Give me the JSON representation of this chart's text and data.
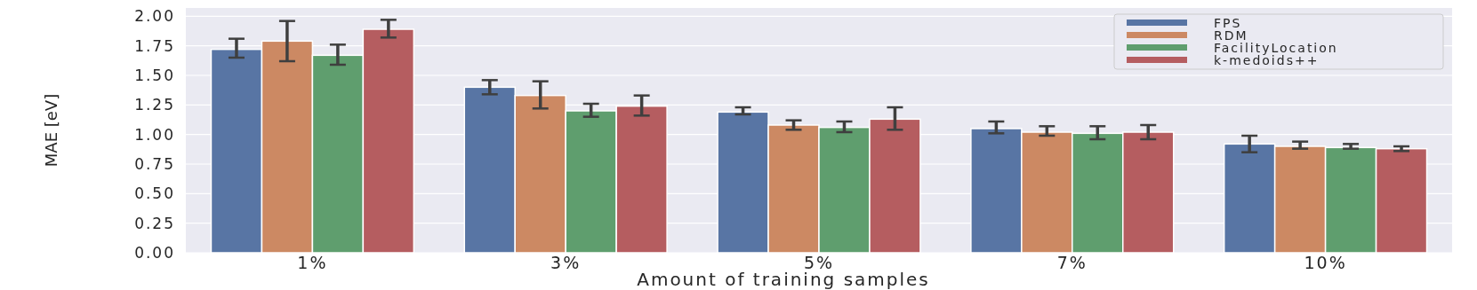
{
  "chart_data": {
    "type": "bar",
    "xlabel": "Amount of training samples",
    "ylabel": "MAE [eV]",
    "categories": [
      "1%",
      "3%",
      "5%",
      "7%",
      "10%"
    ],
    "series": [
      {
        "name": "FPS",
        "color": "#5875a4",
        "values": [
          1.72,
          1.4,
          1.19,
          1.05,
          0.92
        ],
        "errors": [
          [
            1.65,
            1.81
          ],
          [
            1.34,
            1.46
          ],
          [
            1.17,
            1.23
          ],
          [
            1.01,
            1.11
          ],
          [
            0.85,
            0.99
          ]
        ]
      },
      {
        "name": "RDM",
        "color": "#cc8963",
        "values": [
          1.79,
          1.33,
          1.08,
          1.02,
          0.9
        ],
        "errors": [
          [
            1.62,
            1.96
          ],
          [
            1.22,
            1.45
          ],
          [
            1.04,
            1.12
          ],
          [
            0.99,
            1.07
          ],
          [
            0.88,
            0.94
          ]
        ]
      },
      {
        "name": "FacilityLocation",
        "color": "#5f9e6e",
        "values": [
          1.67,
          1.2,
          1.06,
          1.01,
          0.89
        ],
        "errors": [
          [
            1.59,
            1.76
          ],
          [
            1.15,
            1.26
          ],
          [
            1.02,
            1.11
          ],
          [
            0.96,
            1.07
          ],
          [
            0.88,
            0.92
          ]
        ]
      },
      {
        "name": "k-medoids++",
        "color": "#b55d60",
        "values": [
          1.89,
          1.24,
          1.13,
          1.02,
          0.88
        ],
        "errors": [
          [
            1.82,
            1.97
          ],
          [
            1.16,
            1.33
          ],
          [
            1.04,
            1.23
          ],
          [
            0.96,
            1.08
          ],
          [
            0.86,
            0.9
          ]
        ]
      }
    ],
    "ylim": [
      0,
      2.07
    ],
    "yticks": [
      {
        "value": 0,
        "label": "0.00"
      },
      {
        "value": 0.25,
        "label": "0.25"
      },
      {
        "value": 0.5,
        "label": "0.50"
      },
      {
        "value": 0.75,
        "label": "0.75"
      },
      {
        "value": 1,
        "label": "1.00"
      },
      {
        "value": 1.25,
        "label": "1.25"
      },
      {
        "value": 1.5,
        "label": "1.50"
      },
      {
        "value": 1.75,
        "label": "1.75"
      },
      {
        "value": 2,
        "label": "2.00"
      }
    ],
    "grid": "y",
    "legend": "top right"
  }
}
